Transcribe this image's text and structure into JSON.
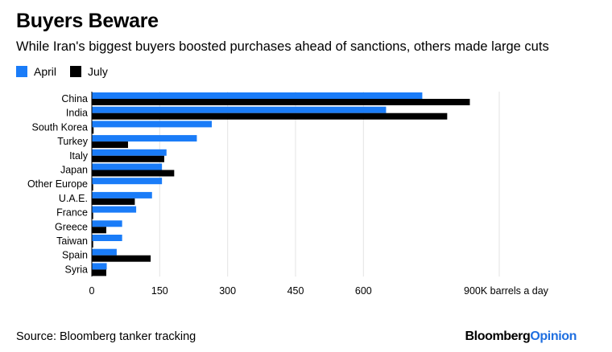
{
  "header": {
    "title": "Buyers Beware",
    "subtitle": "While Iran's biggest buyers boosted purchases ahead of sanctions, others made large cuts"
  },
  "legend": [
    {
      "label": "April",
      "color": "#1a7cf8"
    },
    {
      "label": "July",
      "color": "#000000"
    }
  ],
  "chart_data": {
    "type": "bar",
    "orientation": "horizontal",
    "title": "Buyers Beware",
    "subtitle": "While Iran's biggest buyers boosted purchases ahead of sanctions, others made large cuts",
    "categories": [
      "China",
      "India",
      "South Korea",
      "Turkey",
      "Italy",
      "Japan",
      "Other Europe",
      "U.A.E.",
      "France",
      "Greece",
      "Taiwan",
      "Spain",
      "Syria"
    ],
    "series": [
      {
        "name": "April",
        "color": "#1a7cf8",
        "values": [
          730,
          650,
          265,
          232,
          165,
          155,
          155,
          133,
          98,
          67,
          67,
          55,
          33
        ]
      },
      {
        "name": "July",
        "color": "#000000",
        "values": [
          835,
          785,
          4,
          80,
          160,
          182,
          3,
          95,
          3,
          32,
          3,
          130,
          32
        ]
      }
    ],
    "xlim": [
      0,
      900
    ],
    "x_ticks": [
      0,
      150,
      300,
      450,
      600,
      900
    ],
    "x_tick_labels": [
      "0",
      "150",
      "300",
      "450",
      "600",
      "900K barrels a day"
    ],
    "xlabel": "",
    "ylabel": "",
    "grid": true,
    "legend_position": "top-left"
  },
  "footer": {
    "source": "Source: Bloomberg tanker tracking",
    "brand_part1": "Bloomberg",
    "brand_part2": "Opinion"
  }
}
